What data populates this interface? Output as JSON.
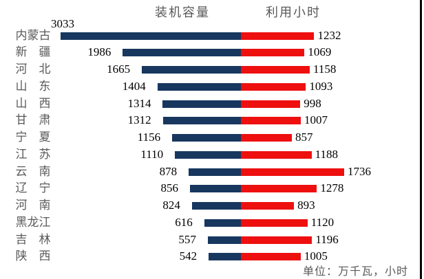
{
  "chart_data": {
    "type": "bar",
    "variant": "diverging-tornado",
    "title": "",
    "categories": [
      "内蒙古",
      "新疆",
      "河北",
      "山东",
      "山西",
      "甘肃",
      "宁夏",
      "江苏",
      "云南",
      "辽宁",
      "河南",
      "黑龙江",
      "吉林",
      "陕西"
    ],
    "series": [
      {
        "name": "装机容量",
        "direction": "left",
        "color": "#17375E",
        "values": [
          3033,
          1986,
          1665,
          1404,
          1314,
          1312,
          1156,
          1110,
          878,
          856,
          824,
          616,
          557,
          542
        ]
      },
      {
        "name": "利用小时",
        "direction": "right",
        "color": "#EE0F0F",
        "values": [
          1232,
          1069,
          1158,
          1093,
          998,
          1007,
          857,
          1188,
          1736,
          1278,
          893,
          1120,
          1196,
          1005
        ]
      }
    ],
    "unit_note": "单位：万千瓦，小时",
    "data_labels": true,
    "grid": false,
    "legend_position": "top-headers",
    "value_range_left": [
      0,
      3033
    ],
    "value_range_right": [
      0,
      1736
    ]
  },
  "page": {
    "text_color": "#000000",
    "muted_color": "#595959",
    "background": "#ffffff"
  }
}
